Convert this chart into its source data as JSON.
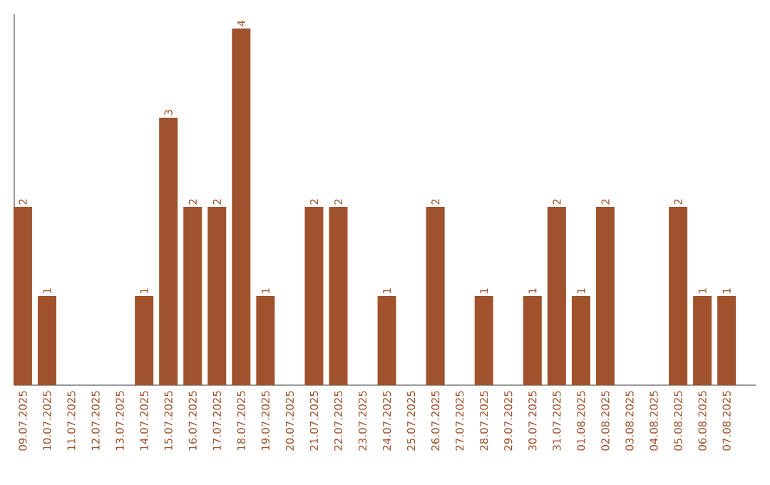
{
  "chart_data": {
    "type": "bar",
    "categories": [
      "09.07.2025",
      "10.07.2025",
      "11.07.2025",
      "12.07.2025",
      "13.07.2025",
      "14.07.2025",
      "15.07.2025",
      "16.07.2025",
      "17.07.2025",
      "18.07.2025",
      "19.07.2025",
      "20.07.2025",
      "21.07.2025",
      "22.07.2025",
      "23.07.2025",
      "24.07.2025",
      "25.07.2025",
      "26.07.2025",
      "27.07.2025",
      "28.07.2025",
      "29.07.2025",
      "30.07.2025",
      "31.07.2025",
      "01.08.2025",
      "02.08.2025",
      "03.08.2025",
      "04.08.2025",
      "05.08.2025",
      "06.08.2025",
      "07.08.2025"
    ],
    "values": [
      2,
      1,
      0,
      0,
      0,
      1,
      3,
      2,
      2,
      4,
      1,
      0,
      2,
      2,
      0,
      1,
      0,
      2,
      0,
      1,
      0,
      1,
      2,
      1,
      2,
      0,
      0,
      2,
      1,
      1
    ],
    "value_labels": [
      "2",
      "1",
      null,
      null,
      null,
      "1",
      "3",
      "2",
      "2",
      "4",
      "1",
      null,
      "2",
      "2",
      null,
      "1",
      null,
      "2",
      null,
      "1",
      null,
      "1",
      "2",
      "1",
      "2",
      null,
      null,
      "2",
      "1",
      "1"
    ],
    "color": "#a0522d"
  }
}
